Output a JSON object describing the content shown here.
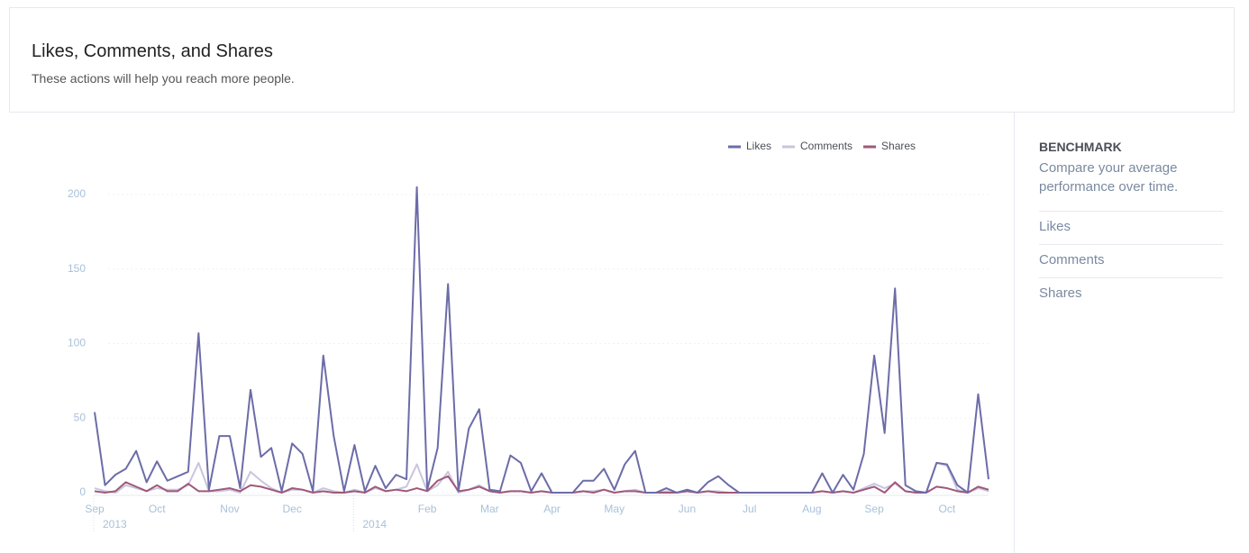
{
  "header": {
    "title": "Likes, Comments, and Shares",
    "subtitle": "These actions will help you reach more people."
  },
  "chart_data": {
    "type": "line",
    "categories": [
      "Sep",
      null,
      null,
      null,
      null,
      null,
      "Oct",
      null,
      null,
      null,
      null,
      null,
      null,
      "Nov",
      null,
      null,
      null,
      null,
      null,
      "Dec",
      null,
      null,
      null,
      null,
      null,
      null,
      null,
      null,
      null,
      null,
      null,
      null,
      "Feb",
      null,
      null,
      null,
      null,
      null,
      "Mar",
      null,
      null,
      null,
      null,
      null,
      "Apr",
      null,
      null,
      null,
      null,
      null,
      "May",
      null,
      null,
      null,
      null,
      null,
      null,
      "Jun",
      null,
      null,
      null,
      null,
      null,
      "Jul",
      null,
      null,
      null,
      null,
      null,
      "Aug",
      null,
      null,
      null,
      null,
      null,
      "Sep",
      null,
      null,
      null,
      null,
      null,
      null,
      "Oct",
      null,
      null,
      null,
      null
    ],
    "category_years": [
      "2013",
      null,
      null,
      null,
      null,
      null,
      null,
      null,
      null,
      null,
      null,
      null,
      null,
      null,
      null,
      null,
      null,
      null,
      null,
      null,
      null,
      null,
      null,
      null,
      null,
      "2014",
      null,
      null,
      null,
      null,
      null,
      null,
      null,
      null,
      null,
      null,
      null,
      null,
      null,
      null,
      null,
      null,
      null,
      null,
      null,
      null,
      null,
      null,
      null,
      null,
      null,
      null,
      null,
      null,
      null,
      null,
      null,
      null,
      null,
      null,
      null,
      null,
      null,
      null,
      null,
      null,
      null,
      null,
      null,
      null,
      null,
      null,
      null,
      null,
      null,
      null,
      null,
      null,
      null,
      null,
      null,
      null,
      null,
      null,
      null,
      null,
      null
    ],
    "series": [
      {
        "name": "Likes",
        "color": "#6c6ca8",
        "values": [
          54,
          5,
          12,
          16,
          28,
          7,
          21,
          8,
          11,
          14,
          107,
          2,
          38,
          38,
          3,
          69,
          24,
          30,
          1,
          33,
          26,
          1,
          92,
          38,
          1,
          32,
          1,
          18,
          3,
          12,
          9,
          205,
          2,
          30,
          140,
          1,
          43,
          56,
          2,
          1,
          25,
          20,
          1,
          13,
          0,
          0,
          0,
          8,
          8,
          16,
          2,
          19,
          28,
          0,
          0,
          3,
          0,
          2,
          0,
          7,
          11,
          5,
          0,
          0,
          0,
          0,
          0,
          0,
          0,
          0,
          13,
          0,
          12,
          2,
          26,
          92,
          40,
          137,
          5,
          1,
          0,
          20,
          19,
          5,
          0,
          66,
          9
        ]
      },
      {
        "name": "Comments",
        "color": "#c9c5de",
        "values": [
          3,
          1,
          0,
          5,
          3,
          1,
          3,
          2,
          2,
          5,
          20,
          1,
          1,
          2,
          0,
          14,
          8,
          3,
          0,
          2,
          2,
          0,
          3,
          1,
          0,
          2,
          0,
          3,
          1,
          2,
          4,
          19,
          1,
          5,
          14,
          0,
          2,
          5,
          1,
          0,
          1,
          1,
          0,
          1,
          0,
          0,
          0,
          1,
          1,
          2,
          0,
          1,
          2,
          0,
          0,
          1,
          0,
          1,
          0,
          1,
          1,
          0,
          0,
          0,
          0,
          0,
          0,
          0,
          0,
          0,
          1,
          0,
          1,
          0,
          3,
          6,
          3,
          6,
          1,
          0,
          0,
          20,
          18,
          2,
          0,
          3,
          1
        ]
      },
      {
        "name": "Shares",
        "color": "#a0587a",
        "values": [
          1,
          0,
          1,
          7,
          4,
          1,
          5,
          1,
          1,
          6,
          1,
          1,
          2,
          3,
          1,
          5,
          4,
          2,
          0,
          3,
          2,
          0,
          1,
          0,
          0,
          1,
          0,
          4,
          1,
          2,
          1,
          3,
          1,
          8,
          11,
          1,
          2,
          4,
          1,
          0,
          1,
          1,
          0,
          1,
          0,
          0,
          0,
          1,
          0,
          2,
          0,
          1,
          1,
          0,
          0,
          0,
          0,
          1,
          0,
          1,
          0,
          0,
          0,
          0,
          0,
          0,
          0,
          0,
          0,
          0,
          1,
          0,
          1,
          0,
          2,
          4,
          0,
          7,
          1,
          0,
          0,
          4,
          3,
          1,
          0,
          4,
          2
        ]
      }
    ],
    "ylim": [
      0,
      210
    ],
    "yticks": [
      0,
      50,
      100,
      150,
      200
    ],
    "grid": true,
    "legend": "top-right"
  },
  "sidebar": {
    "heading": "BENCHMARK",
    "description": "Compare your average performance over time.",
    "items": [
      "Likes",
      "Comments",
      "Shares"
    ]
  }
}
